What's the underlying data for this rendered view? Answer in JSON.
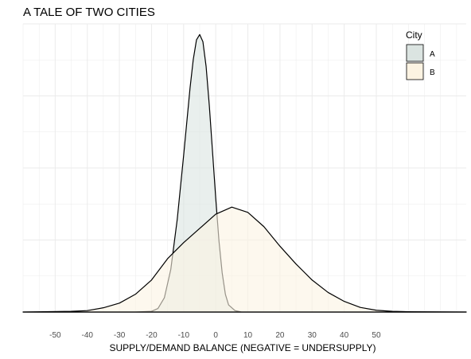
{
  "chart_data": {
    "type": "area",
    "title": "A TALE OF TWO CITIES",
    "xlabel": "SUPPLY/DEMAND BALANCE (NEGATIVE = UNDERSUPPLY)",
    "ylabel": "",
    "xlim": [
      -60,
      78
    ],
    "ylim": [
      0,
      0.081
    ],
    "x_ticks": [
      -50,
      -40,
      -30,
      -20,
      -10,
      0,
      10,
      20,
      30,
      40,
      50
    ],
    "grid": true,
    "legend": {
      "title": "City",
      "position": "top-right"
    },
    "series": [
      {
        "name": "A",
        "color": "#dbe4e1",
        "points": [
          [
            -60,
            0
          ],
          [
            -25,
            0
          ],
          [
            -20,
            0.0002
          ],
          [
            -18,
            0.001
          ],
          [
            -16,
            0.004
          ],
          [
            -14,
            0.012
          ],
          [
            -12,
            0.026
          ],
          [
            -10,
            0.044
          ],
          [
            -8,
            0.063
          ],
          [
            -7,
            0.071
          ],
          [
            -6,
            0.0765
          ],
          [
            -5,
            0.078
          ],
          [
            -4,
            0.076
          ],
          [
            -3,
            0.069
          ],
          [
            -2,
            0.058
          ],
          [
            -1,
            0.045
          ],
          [
            0,
            0.032
          ],
          [
            1,
            0.02
          ],
          [
            2,
            0.011
          ],
          [
            3,
            0.005
          ],
          [
            4,
            0.002
          ],
          [
            6,
            0.0004
          ],
          [
            8,
            0
          ],
          [
            78,
            0
          ]
        ]
      },
      {
        "name": "B",
        "color": "#fcf3e2",
        "points": [
          [
            -60,
            0
          ],
          [
            -45,
            0.0002
          ],
          [
            -40,
            0.0004
          ],
          [
            -35,
            0.0012
          ],
          [
            -30,
            0.0025
          ],
          [
            -25,
            0.005
          ],
          [
            -20,
            0.009
          ],
          [
            -15,
            0.015
          ],
          [
            -10,
            0.0195
          ],
          [
            -5,
            0.0235
          ],
          [
            0,
            0.0275
          ],
          [
            5,
            0.0295
          ],
          [
            10,
            0.028
          ],
          [
            15,
            0.024
          ],
          [
            20,
            0.0185
          ],
          [
            25,
            0.0135
          ],
          [
            30,
            0.009
          ],
          [
            35,
            0.0055
          ],
          [
            40,
            0.003
          ],
          [
            45,
            0.0013
          ],
          [
            50,
            0.0005
          ],
          [
            55,
            0.0002
          ],
          [
            60,
            0.0001
          ],
          [
            78,
            0
          ]
        ]
      }
    ]
  }
}
